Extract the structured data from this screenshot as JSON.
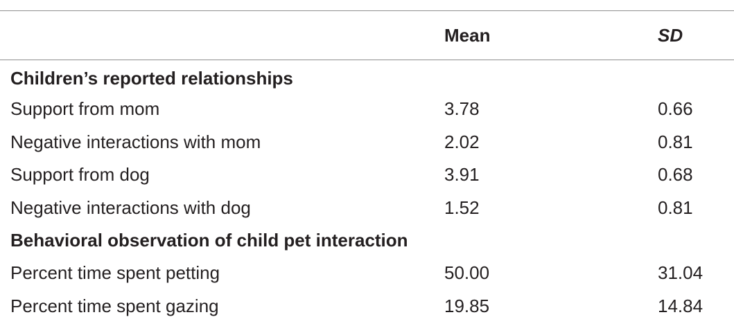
{
  "table": {
    "headers": {
      "label": "",
      "mean": "Mean",
      "sd": "SD"
    },
    "sections": [
      {
        "title": "Children’s reported relationships",
        "rows": [
          {
            "label": "Support from mom",
            "mean": "3.78",
            "sd": "0.66"
          },
          {
            "label": "Negative interactions with mom",
            "mean": "2.02",
            "sd": "0.81"
          },
          {
            "label": "Support from dog",
            "mean": "3.91",
            "sd": "0.68"
          },
          {
            "label": "Negative interactions with dog",
            "mean": "1.52",
            "sd": "0.81"
          }
        ]
      },
      {
        "title": "Behavioral observation of child pet interaction",
        "rows": [
          {
            "label": "Percent time spent petting",
            "mean": "50.00",
            "sd": "31.04"
          },
          {
            "label": "Percent time spent gazing",
            "mean": "19.85",
            "sd": "14.84"
          }
        ]
      }
    ]
  }
}
